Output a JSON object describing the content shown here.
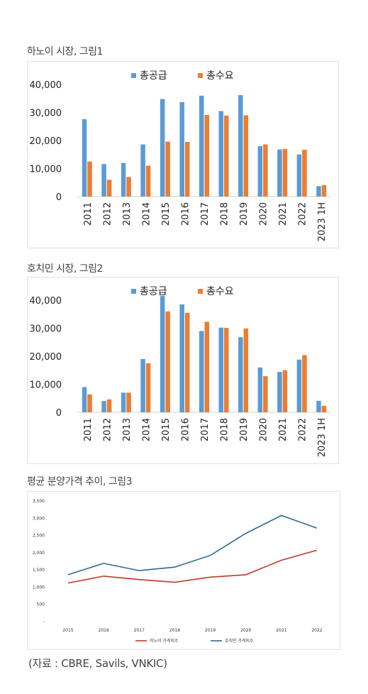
{
  "source_note": "(자료 : CBRE, Savils, VNKIC)",
  "colors": {
    "supply": "#5b9bd5",
    "demand": "#ed7d31",
    "hanoi_index": "#c0392b",
    "hcmc_index": "#2e6a8e"
  },
  "chart_data": [
    {
      "type": "bar",
      "title": "하노이 시장, 그림1",
      "categories": [
        "2011",
        "2012",
        "2013",
        "2014",
        "2015",
        "2016",
        "2017",
        "2018",
        "2019",
        "2020",
        "2021",
        "2022",
        "2023 1H"
      ],
      "series": [
        {
          "name": "총공급",
          "values": [
            27600,
            11600,
            12000,
            18600,
            34800,
            33700,
            36000,
            30500,
            36200,
            18000,
            16800,
            15000,
            3700
          ]
        },
        {
          "name": "총수요",
          "values": [
            12500,
            6000,
            7000,
            11000,
            19600,
            19500,
            29100,
            28900,
            29000,
            18600,
            17000,
            16700,
            4100
          ]
        }
      ],
      "ylim": [
        0,
        40000
      ],
      "yticks": [
        "0",
        "10,000",
        "20,000",
        "30,000",
        "40,000"
      ],
      "grid": false,
      "legend": "top"
    },
    {
      "type": "bar",
      "title": "호치민 시장, 그림2",
      "categories": [
        "2011",
        "2012",
        "2013",
        "2014",
        "2015",
        "2016",
        "2017",
        "2018",
        "2019",
        "2020",
        "2021",
        "2022",
        "2023 1H"
      ],
      "series": [
        {
          "name": "총공급",
          "values": [
            9000,
            4000,
            7000,
            19000,
            41500,
            38500,
            29000,
            30200,
            26800,
            16000,
            14400,
            18800,
            4100
          ]
        },
        {
          "name": "총수요",
          "values": [
            6400,
            4600,
            7000,
            17500,
            36000,
            35500,
            32300,
            30100,
            29900,
            12900,
            15000,
            20400,
            2300
          ]
        }
      ],
      "ylim": [
        0,
        40000
      ],
      "yticks": [
        "0",
        "10,000",
        "20,000",
        "30,000",
        "40,000"
      ],
      "grid": false,
      "legend": "top"
    },
    {
      "type": "line",
      "title": "평균 분양가격 추이, 그림3",
      "x": [
        "2015",
        "2016",
        "2017",
        "2018",
        "2019",
        "2020",
        "2021",
        "2022"
      ],
      "series": [
        {
          "name": "하노이 가격지수",
          "values": [
            1100,
            1300,
            1200,
            1120,
            1270,
            1340,
            1760,
            2050
          ]
        },
        {
          "name": "호치민 가격지수",
          "values": [
            1340,
            1670,
            1460,
            1560,
            1900,
            2540,
            3060,
            2690
          ]
        }
      ],
      "ylim": [
        0,
        3500
      ],
      "yticks": [
        "-",
        "500",
        "1,000",
        "1,500",
        "2,000",
        "2,500",
        "3,000",
        "3,500"
      ],
      "grid": false,
      "legend": "bottom"
    }
  ]
}
